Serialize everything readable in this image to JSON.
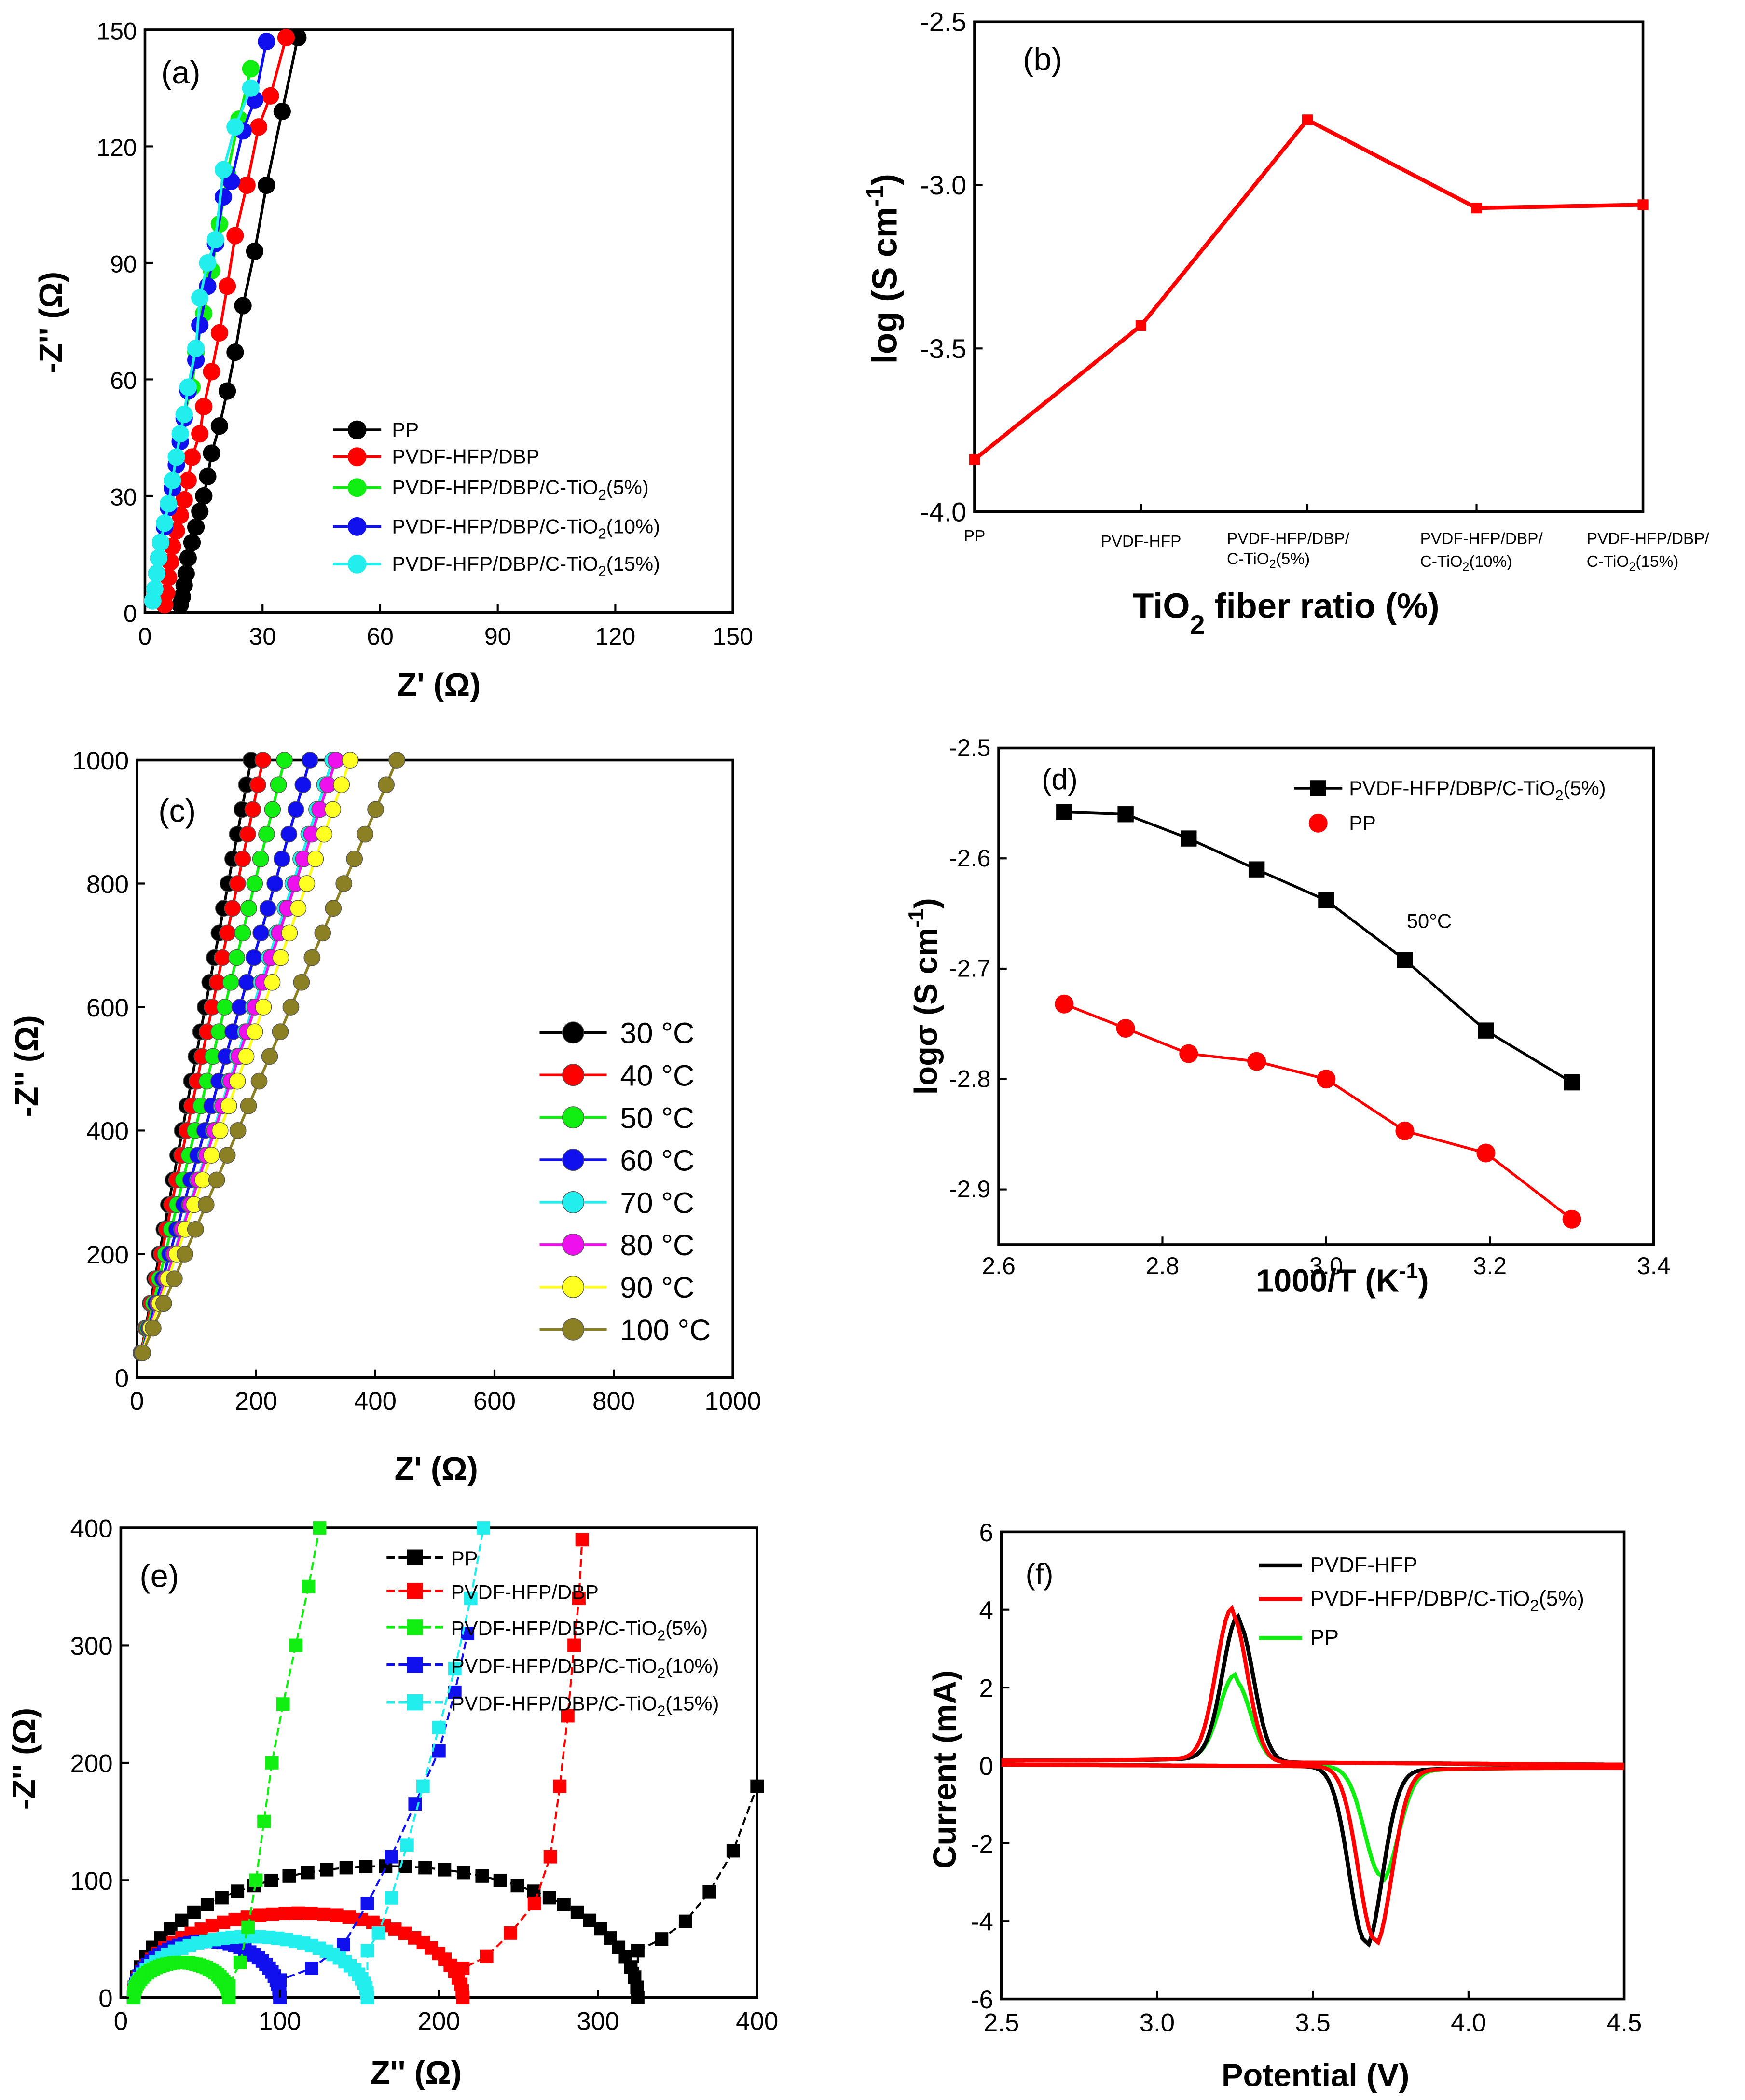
{
  "colors": {
    "black": "#000000",
    "red": "#ff0000",
    "green": "#11ee11",
    "blue": "#1010ee",
    "cyan": "#22eeee",
    "magenta": "#ee11ee",
    "yellow": "#ffff22",
    "olive": "#8b8024",
    "axis": "#000000",
    "background": "#ffffff"
  },
  "chart_data": [
    {
      "panel": "(a)",
      "type": "scatter",
      "xlabel": "Z' (Ω)",
      "ylabel": "-Z'' (Ω)",
      "xlim": [
        0,
        150
      ],
      "ylim": [
        0,
        150
      ],
      "xticks": [
        "0",
        "30",
        "60",
        "90",
        "120",
        "150"
      ],
      "yticks": [
        "0",
        "30",
        "60",
        "90",
        "120",
        "150"
      ],
      "legend": [
        "PP",
        "PVDF-HFP/DBP",
        "PVDF-HFP/DBP/C-TiO2(5%)",
        "PVDF-HFP/DBP/C-TiO2(10%)",
        "PVDF-HFP/DBP/C-TiO2(15%)"
      ],
      "series": [
        {
          "name": "PP",
          "color": "black",
          "x": [
            9,
            9.5,
            10,
            10.5,
            11,
            12,
            13,
            14,
            15,
            16,
            17,
            19,
            21,
            23,
            25,
            28,
            31,
            35,
            39
          ],
          "y": [
            2,
            4,
            7,
            10,
            14,
            18,
            22,
            26,
            30,
            35,
            41,
            48,
            57,
            67,
            79,
            93,
            110,
            129,
            148
          ]
        },
        {
          "name": "PVDF-HFP/DBP",
          "color": "red",
          "x": [
            5,
            5.5,
            6,
            6.5,
            7,
            8,
            9,
            10,
            11,
            12,
            14,
            15,
            17,
            19,
            21,
            23,
            26,
            29,
            32,
            36
          ],
          "y": [
            2,
            5,
            9,
            13,
            17,
            21,
            25,
            29,
            34,
            40,
            46,
            53,
            62,
            72,
            84,
            97,
            110,
            125,
            133,
            148
          ]
        },
        {
          "name": "PVDF-HFP/DBP/C-TiO2(5%)",
          "color": "green",
          "x": [
            2,
            2.5,
            3,
            3.5,
            4,
            5,
            6,
            7,
            8,
            9,
            10,
            12,
            13,
            15,
            17,
            19,
            21,
            24,
            27
          ],
          "y": [
            3,
            6,
            10,
            14,
            18,
            22,
            27,
            32,
            38,
            44,
            51,
            58,
            67,
            77,
            88,
            100,
            113,
            127,
            140
          ]
        },
        {
          "name": "PVDF-HFP/DBP/C-TiO2(10%)",
          "color": "blue",
          "x": [
            2,
            2.5,
            3,
            3.5,
            4,
            5,
            6,
            7,
            8,
            9,
            10,
            11,
            13,
            14,
            16,
            18,
            20,
            22,
            25,
            28,
            31
          ],
          "y": [
            3,
            6,
            10,
            14,
            18,
            22,
            27,
            32,
            38,
            44,
            50,
            57,
            65,
            74,
            84,
            95,
            107,
            111,
            124,
            132,
            147
          ]
        },
        {
          "name": "PVDF-HFP/DBP/C-TiO2(15%)",
          "color": "cyan",
          "x": [
            2,
            2.5,
            3,
            3.5,
            4,
            5,
            6,
            7,
            8,
            9,
            10,
            11,
            13,
            14,
            16,
            18,
            20,
            23,
            27
          ],
          "y": [
            3,
            6,
            10,
            14,
            18,
            23,
            28,
            34,
            40,
            46,
            51,
            58,
            68,
            81,
            90,
            96,
            114,
            125,
            135
          ]
        }
      ]
    },
    {
      "panel": "(b)",
      "type": "line",
      "xlabel": "TiO2 fiber ratio (%)",
      "ylabel": "log (S cm-1)",
      "ylim": [
        -4.0,
        -2.5
      ],
      "yticks": [
        "-4.0",
        "-3.5",
        "-3.0",
        "-2.5"
      ],
      "categories": [
        "PP",
        "PVDF-HFP",
        "PVDF-HFP/DBP/ C-TiO2(5%)",
        "PVDF-HFP/DBP/ C-TiO2(10%)",
        "PVDF-HFP/DBP/ C-TiO2(15%)"
      ],
      "series": [
        {
          "name": "conductivity",
          "color": "red",
          "values": [
            -3.84,
            -3.43,
            -2.8,
            -3.07,
            -3.06
          ]
        }
      ]
    },
    {
      "panel": "(c)",
      "type": "scatter",
      "xlabel": "Z' (Ω)",
      "ylabel": "-Z'' (Ω)",
      "xlim": [
        0,
        1000
      ],
      "ylim": [
        0,
        1000
      ],
      "xticks": [
        "0",
        "200",
        "400",
        "600",
        "800",
        "1000"
      ],
      "yticks": [
        "0",
        "200",
        "400",
        "600",
        "800",
        "1000"
      ],
      "legend": [
        "30 °C",
        "40 °C",
        "50 °C",
        "60 °C",
        "70 °C",
        "80 °C",
        "90 °C",
        "100 °C"
      ],
      "series": [
        {
          "name": "30 °C",
          "color": "black",
          "slope": 5.2
        },
        {
          "name": "40 °C",
          "color": "red",
          "slope": 4.7
        },
        {
          "name": "50 °C",
          "color": "green",
          "slope": 4.0
        },
        {
          "name": "60 °C",
          "color": "blue",
          "slope": 3.4
        },
        {
          "name": "70 °C",
          "color": "cyan",
          "slope": 3.0
        },
        {
          "name": "80 °C",
          "color": "magenta",
          "slope": 2.95
        },
        {
          "name": "90 °C",
          "color": "yellow",
          "slope": 2.75
        },
        {
          "name": "100 °C",
          "color": "olive",
          "slope": 2.25
        }
      ]
    },
    {
      "panel": "(d)",
      "type": "line",
      "xlabel": "1000/T (K-1)",
      "ylabel": "logσ (S cm-1)",
      "xlim": [
        2.6,
        3.4
      ],
      "ylim": [
        -2.95,
        -2.5
      ],
      "xticks": [
        "2.6",
        "2.8",
        "3.0",
        "3.2",
        "3.4"
      ],
      "yticks": [
        "-2.9",
        "-2.8",
        "-2.7",
        "-2.6",
        "-2.5"
      ],
      "annotation": "50°C",
      "series": [
        {
          "name": "PVDF-HFP/DBP/C-TiO2(5%)",
          "color": "black",
          "marker": "square",
          "x": [
            2.68,
            2.755,
            2.832,
            2.915,
            3.0,
            3.096,
            3.195,
            3.3
          ],
          "y": [
            -2.558,
            -2.56,
            -2.582,
            -2.61,
            -2.638,
            -2.692,
            -2.756,
            -2.803
          ]
        },
        {
          "name": "PP",
          "color": "red",
          "marker": "circle",
          "x": [
            2.68,
            2.755,
            2.832,
            2.915,
            3.0,
            3.096,
            3.195,
            3.3
          ],
          "y": [
            -2.732,
            -2.754,
            -2.777,
            -2.784,
            -2.8,
            -2.847,
            -2.867,
            -2.927
          ]
        }
      ]
    },
    {
      "panel": "(e)",
      "type": "scatter",
      "xlabel": "Z'' (Ω)",
      "ylabel": "-Z'' (Ω)",
      "xlim": [
        0,
        400
      ],
      "ylim": [
        0,
        400
      ],
      "xticks": [
        "0",
        "100",
        "200",
        "300",
        "400"
      ],
      "yticks": [
        "0",
        "100",
        "200",
        "300",
        "400"
      ],
      "legend": [
        "PP",
        "PVDF-HFP/DBP",
        "PVDF-HFP/DBP/C-TiO2(5%)",
        "PVDF-HFP/DBP/C-TiO2(10%)",
        "PVDF-HFP/DBP/C-TiO2(15%)"
      ],
      "series": [
        {
          "name": "PP",
          "color": "black",
          "x0": 8,
          "x1": 325,
          "h": 112,
          "tail": [
            [
              325,
              40
            ],
            [
              340,
              50
            ],
            [
              355,
              65
            ],
            [
              370,
              90
            ],
            [
              385,
              125
            ],
            [
              400,
              180
            ]
          ]
        },
        {
          "name": "PVDF-HFP/DBP",
          "color": "red",
          "x0": 8,
          "x1": 215,
          "h": 72,
          "tail": [
            [
              215,
              25
            ],
            [
              230,
              35
            ],
            [
              245,
              55
            ],
            [
              260,
              80
            ],
            [
              270,
              120
            ],
            [
              276,
              180
            ],
            [
              281,
              240
            ],
            [
              285,
              300
            ],
            [
              288,
              340
            ],
            [
              290,
              390
            ]
          ]
        },
        {
          "name": "PVDF-HFP/DBP/C-TiO2(5%)",
          "color": "green",
          "x0": 8,
          "x1": 68,
          "h": 30,
          "tail": [
            [
              68,
              10
            ],
            [
              75,
              30
            ],
            [
              80,
              60
            ],
            [
              85,
              100
            ],
            [
              90,
              150
            ],
            [
              95,
              200
            ],
            [
              102,
              250
            ],
            [
              110,
              300
            ],
            [
              118,
              350
            ],
            [
              125,
              400
            ]
          ]
        },
        {
          "name": "PVDF-HFP/DBP/C-TiO2(10%)",
          "color": "blue",
          "x0": 8,
          "x1": 100,
          "h": 48,
          "tail": [
            [
              100,
              15
            ],
            [
              120,
              25
            ],
            [
              140,
              45
            ],
            [
              155,
              80
            ],
            [
              170,
              120
            ],
            [
              185,
              165
            ],
            [
              200,
              210
            ],
            [
              210,
              260
            ],
            [
              218,
              310
            ]
          ]
        },
        {
          "name": "PVDF-HFP/DBP/C-TiO2(15%)",
          "color": "cyan",
          "x0": 8,
          "x1": 155,
          "h": 52,
          "tail": [
            [
              155,
              40
            ],
            [
              162,
              55
            ],
            [
              170,
              85
            ],
            [
              180,
              130
            ],
            [
              190,
              180
            ],
            [
              200,
              230
            ],
            [
              210,
              280
            ],
            [
              220,
              340
            ],
            [
              228,
              400
            ]
          ]
        }
      ]
    },
    {
      "panel": "(f)",
      "type": "line",
      "xlabel": "Potential (V)",
      "ylabel": "Current (mA)",
      "xlim": [
        2.5,
        4.5
      ],
      "ylim": [
        -6,
        6
      ],
      "xticks": [
        "2.5",
        "3.0",
        "3.5",
        "4.0",
        "4.5"
      ],
      "yticks": [
        "-6",
        "-4",
        "-2",
        "0",
        "2",
        "4",
        "6"
      ],
      "legend": [
        "PVDF-HFP",
        "PVDF-HFP/DBP/C-TiO2(5%)",
        "PP"
      ],
      "series": [
        {
          "name": "PVDF-HFP",
          "color": "black",
          "ox_peak": [
            3.26,
            3.6
          ],
          "red_peak": [
            3.67,
            -4.5
          ]
        },
        {
          "name": "PVDF-HFP/DBP/C-TiO2(5%)",
          "color": "red",
          "ox_peak": [
            3.24,
            3.8
          ],
          "red_peak": [
            3.7,
            -4.45
          ]
        },
        {
          "name": "PP",
          "color": "green",
          "ox_peak": [
            3.25,
            2.1
          ],
          "red_peak": [
            3.72,
            -2.8
          ]
        }
      ]
    }
  ],
  "labels": {
    "a": {
      "panel": "(a)",
      "ylab": "-Z'' (Ω)",
      "xlab": "Z' (Ω)",
      "legend": [
        "PP",
        "PVDF-HFP/DBP",
        "PVDF-HFP/DBP/C-TiO",
        "2",
        "(5%)",
        "(10%)",
        "(15%)"
      ]
    },
    "b": {
      "panel": "(b)",
      "ylab_main": "log (S cm",
      "ylab_sup": "-1",
      "ylab_close": ")",
      "xlab_main": "TiO",
      "xlab_sub": "2",
      "xlab_rest": " fiber ratio (%)",
      "cat1": "PP",
      "cat2": "PVDF-HFP",
      "cat_top": "PVDF-HFP/DBP/",
      "cat_bot": "C-TiO",
      "cat_sub": "2",
      "p5": "(5%)",
      "p10": "(10%)",
      "p15": "(15%)",
      "cat5_top": "PVDF-HFP/DBP/"
    },
    "c": {
      "panel": "(c)",
      "ylab": "-Z'' (Ω)",
      "xlab": "Z' (Ω)"
    },
    "d": {
      "panel": "(d)",
      "ylab_main": "logσ (S cm",
      "ylab_sup": "-1",
      "ylab_close": ")",
      "xlab_main": "1000/T (K",
      "xlab_sup": "-1",
      "xlab_close": ")",
      "leg1": "PVDF-HFP/DBP/C-TiO",
      "leg1_sub": "2",
      "leg1_rest": "(5%)",
      "leg2": "PP",
      "annot": "50°C"
    },
    "e": {
      "panel": "(e)",
      "ylab": "-Z'' (Ω)",
      "xlab": "Z'' (Ω)"
    },
    "f": {
      "panel": "(f)",
      "ylab": "Current (mA)",
      "xlab": "Potential (V)",
      "leg1": "PVDF-HFP",
      "leg2": "PVDF-HFP/DBP/C-TiO",
      "leg2_sub": "2",
      "leg2_rest": "(5%)",
      "leg3": "PP"
    }
  }
}
